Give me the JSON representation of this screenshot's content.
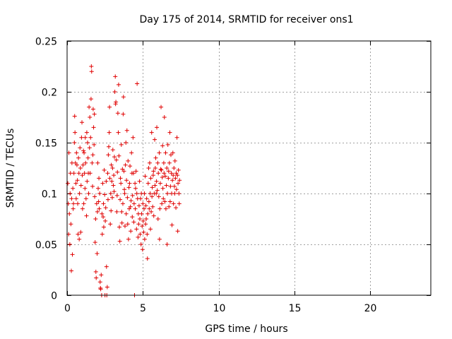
{
  "chart_data": {
    "type": "scatter",
    "title": "Day 175 of 2014, SRMTID for receiver ons1",
    "xlabel": "GPS time / hours",
    "ylabel": "SRMTID / TECUs",
    "xlim": [
      0,
      24
    ],
    "ylim": [
      0,
      0.25
    ],
    "x_ticks": [
      0,
      5,
      10,
      15,
      20
    ],
    "x_tick_labels": [
      "0",
      "5",
      "10",
      "15",
      "20"
    ],
    "y_ticks": [
      0,
      0.05,
      0.1,
      0.15,
      0.2,
      0.25
    ],
    "y_tick_labels": [
      "0",
      "0.05",
      "0.1",
      "0.15",
      "0.2",
      "0.25"
    ],
    "grid": true,
    "marker": "+",
    "color": "#e00000",
    "series": [
      {
        "name": "ons1",
        "points": [
          [
            0.05,
            0.11
          ],
          [
            0.08,
            0.09
          ],
          [
            0.1,
            0.06
          ],
          [
            0.12,
            0.14
          ],
          [
            0.15,
            0.08
          ],
          [
            0.18,
            0.05
          ],
          [
            0.2,
            0.1
          ],
          [
            0.22,
            0.12
          ],
          [
            0.25,
            0.07
          ],
          [
            0.28,
            0.024
          ],
          [
            0.3,
            0.095
          ],
          [
            0.32,
            0.13
          ],
          [
            0.35,
            0.04
          ],
          [
            0.38,
            0.105
          ],
          [
            0.4,
            0.085
          ],
          [
            0.42,
            0.09
          ],
          [
            0.45,
            0.12
          ],
          [
            0.48,
            0.15
          ],
          [
            0.5,
            0.176
          ],
          [
            0.52,
            0.16
          ],
          [
            0.55,
            0.13
          ],
          [
            0.58,
            0.11
          ],
          [
            0.6,
            0.095
          ],
          [
            0.62,
            0.14
          ],
          [
            0.65,
            0.128
          ],
          [
            0.68,
            0.113
          ],
          [
            0.7,
            0.09
          ],
          [
            0.72,
            0.06
          ],
          [
            0.75,
            0.135
          ],
          [
            0.78,
            0.12
          ],
          [
            0.8,
            0.055
          ],
          [
            0.82,
            0.1
          ],
          [
            0.85,
            0.145
          ],
          [
            0.88,
            0.125
          ],
          [
            0.9,
            0.062
          ],
          [
            0.92,
            0.108
          ],
          [
            0.95,
            0.155
          ],
          [
            0.98,
            0.17
          ],
          [
            1.0,
            0.118
          ],
          [
            1.02,
            0.085
          ],
          [
            1.05,
            0.128
          ],
          [
            1.08,
            0.142
          ],
          [
            1.1,
            0.09
          ],
          [
            1.12,
            0.14
          ],
          [
            1.15,
            0.12
          ],
          [
            1.18,
            0.105
          ],
          [
            1.2,
            0.155
          ],
          [
            1.22,
            0.13
          ],
          [
            1.25,
            0.095
          ],
          [
            1.28,
            0.078
          ],
          [
            1.3,
            0.16
          ],
          [
            1.32,
            0.112
          ],
          [
            1.35,
            0.15
          ],
          [
            1.38,
            0.135
          ],
          [
            1.4,
            0.12
          ],
          [
            1.42,
            0.1
          ],
          [
            1.45,
            0.185
          ],
          [
            1.48,
            0.145
          ],
          [
            1.5,
            0.175
          ],
          [
            1.52,
            0.12
          ],
          [
            1.55,
            0.155
          ],
          [
            1.58,
            0.193
          ],
          [
            1.6,
            0.225
          ],
          [
            1.62,
            0.22
          ],
          [
            1.65,
            0.13
          ],
          [
            1.68,
            0.107
          ],
          [
            1.7,
            0.138
          ],
          [
            1.72,
            0.183
          ],
          [
            1.75,
            0.165
          ],
          [
            1.78,
            0.148
          ],
          [
            1.8,
            0.178
          ],
          [
            1.82,
            0.097
          ],
          [
            1.85,
            0.052
          ],
          [
            1.88,
            0.075
          ],
          [
            1.9,
            0.023
          ],
          [
            1.92,
            0.017
          ],
          [
            1.95,
            0.09
          ],
          [
            1.98,
            0.041
          ],
          [
            2.0,
            0.082
          ],
          [
            2.02,
            0.13
          ],
          [
            2.05,
            0.105
          ],
          [
            2.08,
            0.092
          ],
          [
            2.1,
            0.115
          ],
          [
            2.12,
            0.085
          ],
          [
            2.15,
            0.1
          ],
          [
            2.18,
            0.013
          ],
          [
            2.2,
            0.007
          ],
          [
            2.22,
            0.006
          ],
          [
            2.25,
            0.02
          ],
          [
            2.28,
            0.0
          ],
          [
            2.3,
            0.08
          ],
          [
            2.32,
            0.06
          ],
          [
            2.35,
            0.11
          ],
          [
            2.38,
            0.077
          ],
          [
            2.4,
            0.09
          ],
          [
            2.42,
            0.067
          ],
          [
            2.45,
            0.123
          ],
          [
            2.48,
            0.099
          ],
          [
            2.5,
            0.0
          ],
          [
            2.52,
            0.073
          ],
          [
            2.55,
            0.086
          ],
          [
            2.58,
            0.112
          ],
          [
            2.6,
            0.028
          ],
          [
            2.62,
            0.0
          ],
          [
            2.65,
            0.008
          ],
          [
            2.68,
            0.12
          ],
          [
            2.7,
            0.094
          ],
          [
            2.72,
            0.138
          ],
          [
            2.75,
            0.146
          ],
          [
            2.78,
            0.16
          ],
          [
            2.8,
            0.185
          ],
          [
            2.82,
            0.115
          ],
          [
            2.85,
            0.07
          ],
          [
            2.88,
            0.1
          ],
          [
            2.9,
            0.083
          ],
          [
            2.92,
            0.128
          ],
          [
            2.95,
            0.112
          ],
          [
            2.98,
            0.096
          ],
          [
            3.0,
            0.125
          ],
          [
            3.02,
            0.143
          ],
          [
            3.05,
            0.108
          ],
          [
            3.08,
            0.118
          ],
          [
            3.1,
            0.102
          ],
          [
            3.12,
            0.136
          ],
          [
            3.15,
            0.2
          ],
          [
            3.18,
            0.215
          ],
          [
            3.2,
            0.188
          ],
          [
            3.22,
            0.19
          ],
          [
            3.25,
            0.133
          ],
          [
            3.28,
            0.082
          ],
          [
            3.3,
            0.098
          ],
          [
            3.32,
            0.121
          ],
          [
            3.35,
            0.179
          ],
          [
            3.38,
            0.16
          ],
          [
            3.4,
            0.207
          ],
          [
            3.42,
            0.137
          ],
          [
            3.45,
            0.067
          ],
          [
            3.48,
            0.053
          ],
          [
            3.5,
            0.094
          ],
          [
            3.52,
            0.115
          ],
          [
            3.55,
            0.11
          ],
          [
            3.58,
            0.148
          ],
          [
            3.6,
            0.082
          ],
          [
            3.62,
            0.071
          ],
          [
            3.65,
            0.124
          ],
          [
            3.68,
            0.09
          ],
          [
            3.7,
            0.178
          ],
          [
            3.72,
            0.195
          ],
          [
            3.75,
            0.122
          ],
          [
            3.78,
            0.104
          ],
          [
            3.8,
            0.1
          ],
          [
            3.82,
            0.068
          ],
          [
            3.85,
            0.128
          ],
          [
            3.88,
            0.15
          ],
          [
            3.9,
            0.08
          ],
          [
            3.92,
            0.113
          ],
          [
            3.95,
            0.162
          ],
          [
            3.98,
            0.096
          ],
          [
            4.0,
            0.07
          ],
          [
            4.02,
            0.132
          ],
          [
            4.05,
            0.055
          ],
          [
            4.08,
            0.106
          ],
          [
            4.1,
            0.085
          ],
          [
            4.12,
            0.11
          ],
          [
            4.15,
            0.127
          ],
          [
            4.18,
            0.087
          ],
          [
            4.2,
            0.063
          ],
          [
            4.22,
            0.093
          ],
          [
            4.25,
            0.14
          ],
          [
            4.28,
            0.12
          ],
          [
            4.3,
            0.077
          ],
          [
            4.32,
            0.098
          ],
          [
            4.35,
            0.155
          ],
          [
            4.38,
            0.12
          ],
          [
            4.4,
            0.072
          ],
          [
            4.42,
            0.09
          ],
          [
            4.45,
            0.0
          ],
          [
            4.48,
            0.11
          ],
          [
            4.5,
            0.085
          ],
          [
            4.52,
            0.105
          ],
          [
            4.55,
            0.122
          ],
          [
            4.58,
            0.065
          ],
          [
            4.6,
            0.1
          ],
          [
            4.62,
            0.208
          ],
          [
            4.65,
            0.095
          ],
          [
            4.68,
            0.057
          ],
          [
            4.7,
            0.08
          ],
          [
            4.72,
            0.07
          ],
          [
            4.75,
            0.088
          ],
          [
            4.78,
            0.112
          ],
          [
            4.8,
            0.075
          ],
          [
            4.82,
            0.06
          ],
          [
            4.85,
            0.095
          ],
          [
            4.88,
            0.05
          ],
          [
            4.9,
            0.1
          ],
          [
            4.92,
            0.08
          ],
          [
            4.95,
            0.068
          ],
          [
            4.98,
            0.045
          ],
          [
            5.0,
            0.09
          ],
          [
            5.02,
            0.073
          ],
          [
            5.05,
            0.062
          ],
          [
            5.08,
            0.085
          ],
          [
            5.1,
            0.1
          ],
          [
            5.12,
            0.055
          ],
          [
            5.15,
            0.117
          ],
          [
            5.18,
            0.07
          ],
          [
            5.2,
            0.088
          ],
          [
            5.22,
            0.075
          ],
          [
            5.25,
            0.095
          ],
          [
            5.28,
            0.06
          ],
          [
            5.3,
            0.036
          ],
          [
            5.32,
            0.08
          ],
          [
            5.35,
            0.11
          ],
          [
            5.38,
            0.125
          ],
          [
            5.4,
            0.092
          ],
          [
            5.42,
            0.085
          ],
          [
            5.45,
            0.13
          ],
          [
            5.48,
            0.1
          ],
          [
            5.5,
            0.065
          ],
          [
            5.52,
            0.115
          ],
          [
            5.55,
            0.082
          ],
          [
            5.58,
            0.16
          ],
          [
            5.6,
            0.097
          ],
          [
            5.62,
            0.106
          ],
          [
            5.65,
            0.087
          ],
          [
            5.68,
            0.118
          ],
          [
            5.7,
            0.122
          ],
          [
            5.72,
            0.078
          ],
          [
            5.75,
            0.1
          ],
          [
            5.78,
            0.153
          ],
          [
            5.8,
            0.108
          ],
          [
            5.82,
            0.125
          ],
          [
            5.85,
            0.135
          ],
          [
            5.88,
            0.1
          ],
          [
            5.9,
            0.112
          ],
          [
            5.92,
            0.165
          ],
          [
            5.95,
            0.103
          ],
          [
            5.98,
            0.13
          ],
          [
            6.0,
            0.075
          ],
          [
            6.02,
            0.12
          ],
          [
            6.05,
            0.097
          ],
          [
            6.08,
            0.14
          ],
          [
            6.1,
            0.055
          ],
          [
            6.12,
            0.085
          ],
          [
            6.15,
            0.11
          ],
          [
            6.18,
            0.124
          ],
          [
            6.2,
            0.185
          ],
          [
            6.22,
            0.123
          ],
          [
            6.25,
            0.09
          ],
          [
            6.28,
            0.116
          ],
          [
            6.3,
            0.147
          ],
          [
            6.32,
            0.105
          ],
          [
            6.35,
            0.095
          ],
          [
            6.38,
            0.13
          ],
          [
            6.4,
            0.12
          ],
          [
            6.42,
            0.175
          ],
          [
            6.45,
            0.092
          ],
          [
            6.48,
            0.117
          ],
          [
            6.5,
            0.14
          ],
          [
            6.52,
            0.085
          ],
          [
            6.55,
            0.108
          ],
          [
            6.58,
            0.125
          ],
          [
            6.6,
            0.05
          ],
          [
            6.62,
            0.1
          ],
          [
            6.65,
            0.148
          ],
          [
            6.68,
            0.115
          ],
          [
            6.7,
            0.122
          ],
          [
            6.72,
            0.087
          ],
          [
            6.75,
            0.13
          ],
          [
            6.78,
            0.16
          ],
          [
            6.8,
            0.092
          ],
          [
            6.82,
            0.107
          ],
          [
            6.85,
            0.138
          ],
          [
            6.88,
            0.12
          ],
          [
            6.9,
            0.1
          ],
          [
            6.92,
            0.069
          ],
          [
            6.95,
            0.113
          ],
          [
            6.98,
            0.14
          ],
          [
            7.0,
            0.118
          ],
          [
            7.02,
            0.09
          ],
          [
            7.05,
            0.125
          ],
          [
            7.08,
            0.107
          ],
          [
            7.1,
            0.1
          ],
          [
            7.12,
            0.132
          ],
          [
            7.15,
            0.115
          ],
          [
            7.18,
            0.086
          ],
          [
            7.2,
            0.12
          ],
          [
            7.22,
            0.104
          ],
          [
            7.25,
            0.155
          ],
          [
            7.28,
            0.118
          ],
          [
            7.3,
            0.063
          ],
          [
            7.32,
            0.11
          ],
          [
            7.35,
            0.123
          ],
          [
            7.38,
            0.1
          ],
          [
            7.4,
            0.09
          ],
          [
            7.42,
            0.113
          ]
        ]
      }
    ]
  }
}
